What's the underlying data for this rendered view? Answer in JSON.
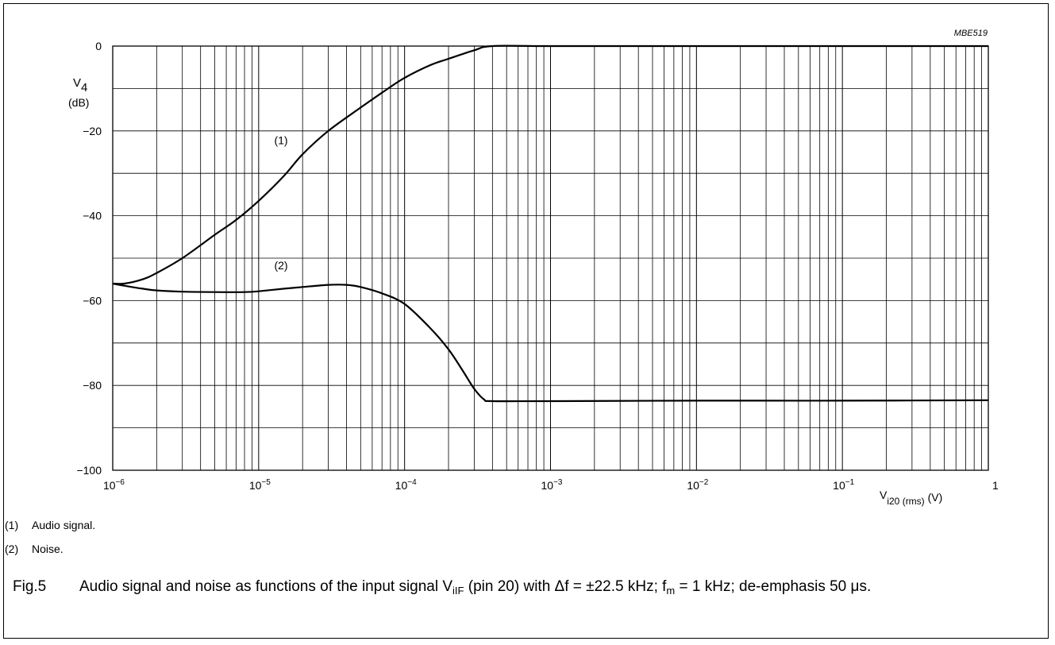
{
  "chart_data": {
    "type": "line",
    "figure_id": "MBE519",
    "x_scale": "log",
    "xlim": [
      1e-06,
      1
    ],
    "ylim": [
      -100,
      0
    ],
    "grid": true,
    "y_axis_label": {
      "symbol": "V",
      "subscript": "4",
      "unit": "(dB)"
    },
    "x_axis_label": {
      "symbol": "V",
      "subscript": "i20 (rms)",
      "unit": "(V)"
    },
    "y_ticks": [
      {
        "value": 0,
        "label": "0"
      },
      {
        "value": -20,
        "label": "−20"
      },
      {
        "value": -40,
        "label": "−40"
      },
      {
        "value": -60,
        "label": "−60"
      },
      {
        "value": -80,
        "label": "−80"
      },
      {
        "value": -100,
        "label": "−100"
      }
    ],
    "x_ticks": [
      {
        "value": 1e-06,
        "base": "10",
        "exp": "−6"
      },
      {
        "value": 1e-05,
        "base": "10",
        "exp": "−5"
      },
      {
        "value": 0.0001,
        "base": "10",
        "exp": "−4"
      },
      {
        "value": 0.001,
        "base": "10",
        "exp": "−3"
      },
      {
        "value": 0.01,
        "base": "10",
        "exp": "−2"
      },
      {
        "value": 0.1,
        "base": "10",
        "exp": "−1"
      },
      {
        "value": 1,
        "base": "1",
        "exp": ""
      }
    ],
    "series": [
      {
        "name": "(1)",
        "x": [
          1e-06,
          1.2e-06,
          1.6e-06,
          2e-06,
          3e-06,
          5e-06,
          7e-06,
          1e-05,
          1.5e-05,
          2e-05,
          3e-05,
          5e-05,
          7e-05,
          0.0001,
          0.00015,
          0.0002,
          0.0003,
          0.0004,
          0.001,
          0.01,
          0.1,
          1
        ],
        "y": [
          -56,
          -56,
          -55,
          -53.5,
          -50,
          -44.5,
          -41,
          -36.5,
          -30.5,
          -25.5,
          -20,
          -14.5,
          -11,
          -7.5,
          -4.5,
          -3,
          -1,
          0,
          0,
          0,
          0,
          0
        ]
      },
      {
        "name": "(2)",
        "x": [
          1e-06,
          1.2e-06,
          1.6e-06,
          2e-06,
          3e-06,
          5e-06,
          8e-06,
          1e-05,
          1.5e-05,
          2e-05,
          3e-05,
          4e-05,
          5e-05,
          7e-05,
          0.0001,
          0.00015,
          0.0002,
          0.00025,
          0.0003,
          0.00035,
          0.0004,
          0.001,
          0.01,
          0.1,
          1
        ],
        "y": [
          -56,
          -56.5,
          -57.2,
          -57.6,
          -57.9,
          -58,
          -58,
          -57.8,
          -57.2,
          -56.8,
          -56.3,
          -56.3,
          -56.8,
          -58.3,
          -60.8,
          -66.5,
          -71.5,
          -76.5,
          -80.8,
          -83.3,
          -83.7,
          -83.7,
          -83.6,
          -83.6,
          -83.5
        ]
      }
    ],
    "annotations": [
      {
        "text": "(1)",
        "x": 1.45e-05,
        "y": -25
      },
      {
        "text": "(2)",
        "x": 1.45e-05,
        "y": -54.5
      }
    ]
  },
  "notes": [
    {
      "num": "(1)",
      "text": "Audio signal."
    },
    {
      "num": "(2)",
      "text": "Noise."
    }
  ],
  "caption": {
    "fig": "Fig.5",
    "parts": [
      {
        "t": "Audio signal and noise as functions of the input signal V"
      },
      {
        "t": "iIF",
        "sub": true
      },
      {
        "t": " (pin 20) with Δf = ±22.5 kHz; f"
      },
      {
        "t": "m",
        "sub": true
      },
      {
        "t": " = 1 kHz; de-emphasis 50 μs."
      }
    ]
  }
}
